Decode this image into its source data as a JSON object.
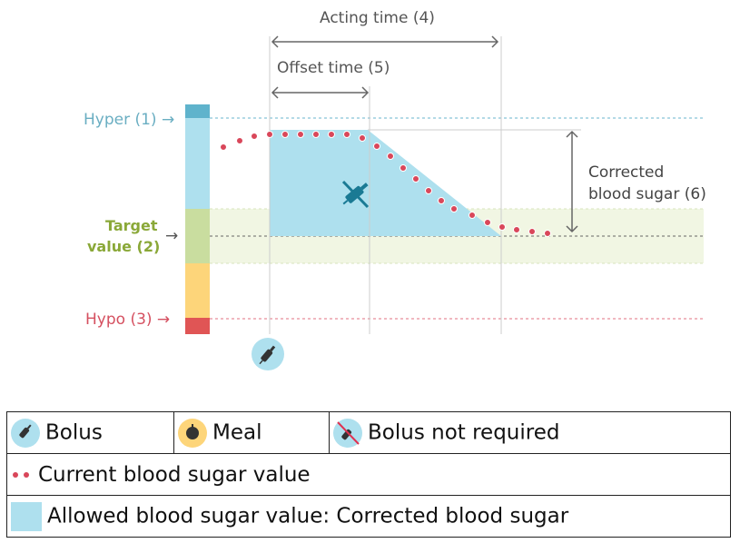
{
  "diagram": {
    "acting_time": "Acting time (4)",
    "offset_time": "Offset time (5)",
    "hyper": "Hyper (1) →",
    "target_line1": "Target",
    "target_line2": "value (2)",
    "target_arrow": "→",
    "hypo": "Hypo (3) →",
    "corrected_line1": "Corrected",
    "corrected_line2": "blood sugar (6)",
    "colors": {
      "hyper": "#5fb3cc",
      "allowed": "#aee0ee",
      "target": "#c9dd9f",
      "hypo_warn": "#fdd57a",
      "hypo": "#e05555",
      "dots": "#d9475a",
      "syringe": "#1a7a94"
    }
  },
  "legend": {
    "bolus": "Bolus",
    "meal": "Meal",
    "bolus_not_required": "Bolus not required",
    "current": "Current blood sugar value",
    "allowed": "Allowed blood sugar value: Corrected blood sugar"
  }
}
